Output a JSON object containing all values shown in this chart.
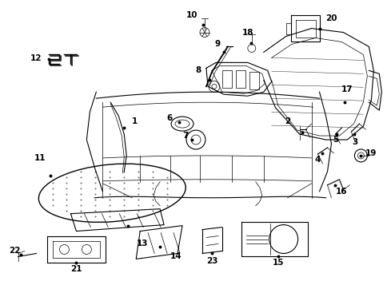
{
  "background_color": "#ffffff",
  "line_color": "#000000",
  "fig_width": 4.85,
  "fig_height": 3.57,
  "dpi": 100,
  "label_fontsize": 7.5
}
